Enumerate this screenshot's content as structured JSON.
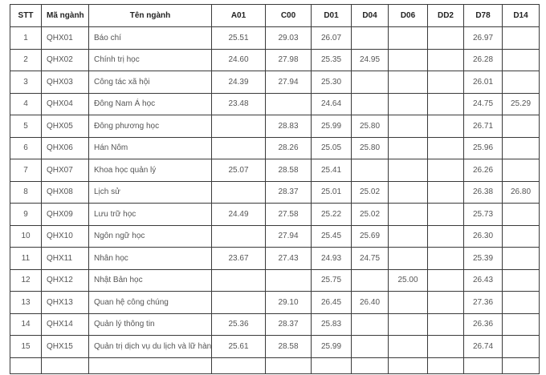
{
  "table": {
    "headers": [
      "STT",
      "Mã ngành",
      "Tên ngành",
      "A01",
      "C00",
      "D01",
      "D04",
      "D06",
      "DD2",
      "D78",
      "D14"
    ],
    "rows": [
      [
        "1",
        "QHX01",
        "Báo chí",
        "25.51",
        "29.03",
        "26.07",
        "",
        "",
        "",
        "26.97",
        ""
      ],
      [
        "2",
        "QHX02",
        "Chính trị học",
        "24.60",
        "27.98",
        "25.35",
        "24.95",
        "",
        "",
        "26.28",
        ""
      ],
      [
        "3",
        "QHX03",
        "Công tác xã hội",
        "24.39",
        "27.94",
        "25.30",
        "",
        "",
        "",
        "26.01",
        ""
      ],
      [
        "4",
        "QHX04",
        "Đông Nam Á học",
        "23.48",
        "",
        "24.64",
        "",
        "",
        "",
        "24.75",
        "25.29"
      ],
      [
        "5",
        "QHX05",
        "Đông phương học",
        "",
        "28.83",
        "25.99",
        "25.80",
        "",
        "",
        "26.71",
        ""
      ],
      [
        "6",
        "QHX06",
        "Hán Nôm",
        "",
        "28.26",
        "25.05",
        "25.80",
        "",
        "",
        "25.96",
        ""
      ],
      [
        "7",
        "QHX07",
        "Khoa học quản lý",
        "25.07",
        "28.58",
        "25.41",
        "",
        "",
        "",
        "26.26",
        ""
      ],
      [
        "8",
        "QHX08",
        "Lịch sử",
        "",
        "28.37",
        "25.01",
        "25.02",
        "",
        "",
        "26.38",
        "26.80"
      ],
      [
        "9",
        "QHX09",
        "Lưu trữ học",
        "24.49",
        "27.58",
        "25.22",
        "25.02",
        "",
        "",
        "25.73",
        ""
      ],
      [
        "10",
        "QHX10",
        "Ngôn ngữ học",
        "",
        "27.94",
        "25.45",
        "25.69",
        "",
        "",
        "26.30",
        ""
      ],
      [
        "11",
        "QHX11",
        "Nhân học",
        "23.67",
        "27.43",
        "24.93",
        "24.75",
        "",
        "",
        "25.39",
        ""
      ],
      [
        "12",
        "QHX12",
        "Nhật Bản học",
        "",
        "",
        "25.75",
        "",
        "25.00",
        "",
        "26.43",
        ""
      ],
      [
        "13",
        "QHX13",
        "Quan hệ công chúng",
        "",
        "29.10",
        "26.45",
        "26.40",
        "",
        "",
        "27.36",
        ""
      ],
      [
        "14",
        "QHX14",
        "Quản lý thông tin",
        "25.36",
        "28.37",
        "25.83",
        "",
        "",
        "",
        "26.36",
        ""
      ],
      [
        "15",
        "QHX15",
        "Quản trị dịch vụ du lịch và lữ hành",
        "25.61",
        "28.58",
        "25.99",
        "",
        "",
        "",
        "26.74",
        ""
      ]
    ]
  }
}
